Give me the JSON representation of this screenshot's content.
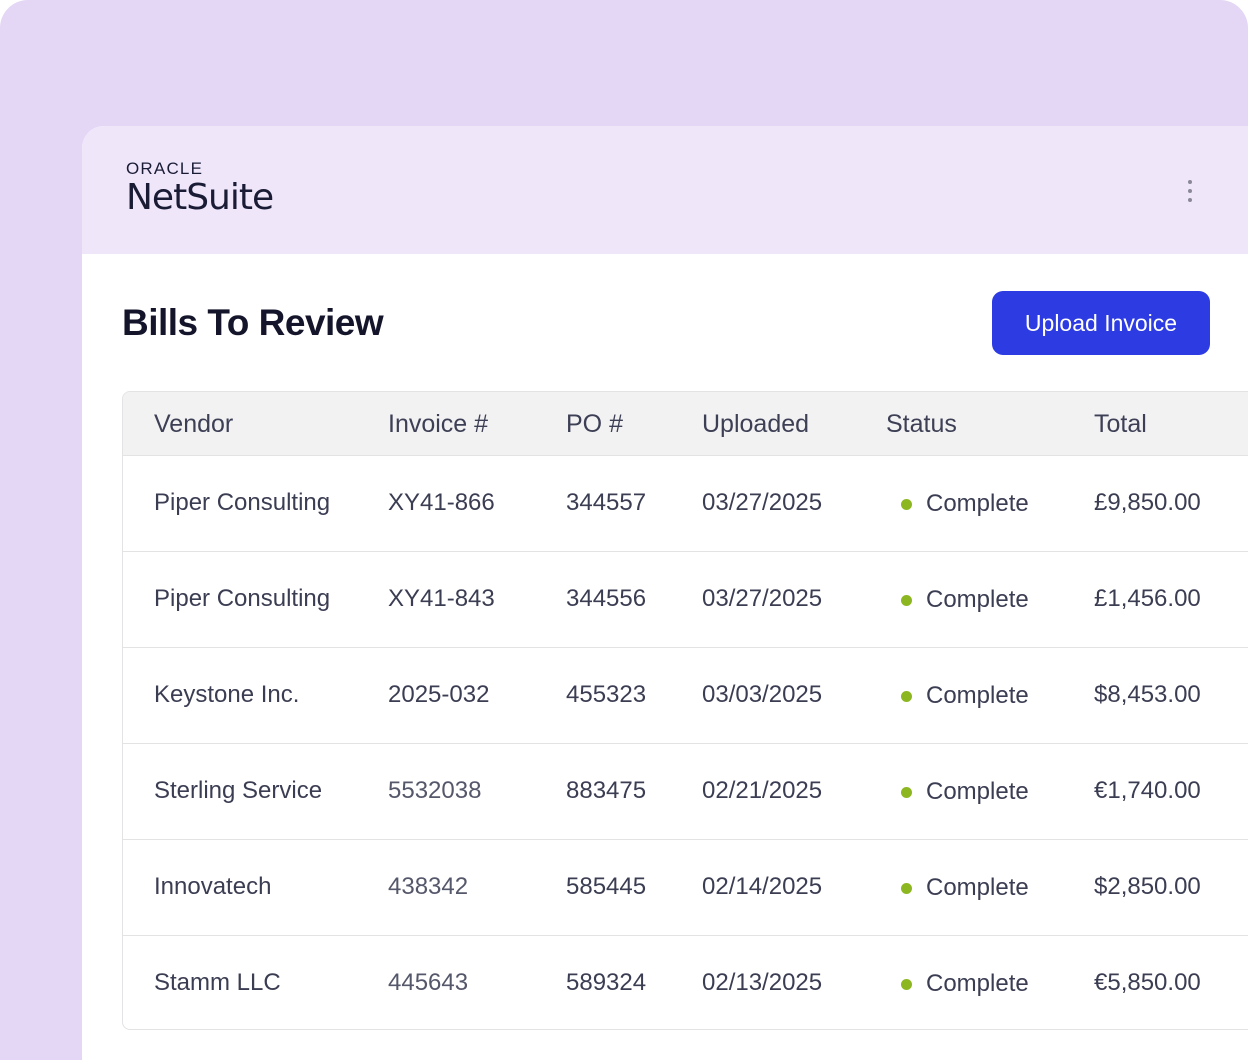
{
  "brand": {
    "oracle": "ORACLE",
    "product": "NetSuite"
  },
  "header": {
    "menu_icon": "kebab-vertical-icon"
  },
  "page": {
    "title": "Bills To Review",
    "upload_label": "Upload Invoice"
  },
  "colors": {
    "accent": "#2c3be2",
    "status_complete": "#8db721",
    "header_bg": "#efe6fa",
    "backdrop": "#e4d6f5"
  },
  "table": {
    "columns": [
      "Vendor",
      "Invoice #",
      "PO #",
      "Uploaded",
      "Status",
      "Total"
    ],
    "rows": [
      {
        "vendor": "Piper Consulting",
        "invoice": "XY41-866",
        "po": "344557",
        "uploaded": "03/27/2025",
        "status": "Complete",
        "total": "£9,850.00"
      },
      {
        "vendor": "Piper Consulting",
        "invoice": "XY41-843",
        "po": "344556",
        "uploaded": "03/27/2025",
        "status": "Complete",
        "total": "£1,456.00"
      },
      {
        "vendor": "Keystone Inc.",
        "invoice": "2025-032",
        "po": "455323",
        "uploaded": "03/03/2025",
        "status": "Complete",
        "total": "$8,453.00"
      },
      {
        "vendor": "Sterling Service",
        "invoice": "5532038",
        "po": "883475",
        "uploaded": "02/21/2025",
        "status": "Complete",
        "total": "€1,740.00"
      },
      {
        "vendor": "Innovatech",
        "invoice": "438342",
        "po": "585445",
        "uploaded": "02/14/2025",
        "status": "Complete",
        "total": "$2,850.00"
      },
      {
        "vendor": "Stamm LLC",
        "invoice": "445643",
        "po": "589324",
        "uploaded": "02/13/2025",
        "status": "Complete",
        "total": "€5,850.00"
      }
    ]
  }
}
